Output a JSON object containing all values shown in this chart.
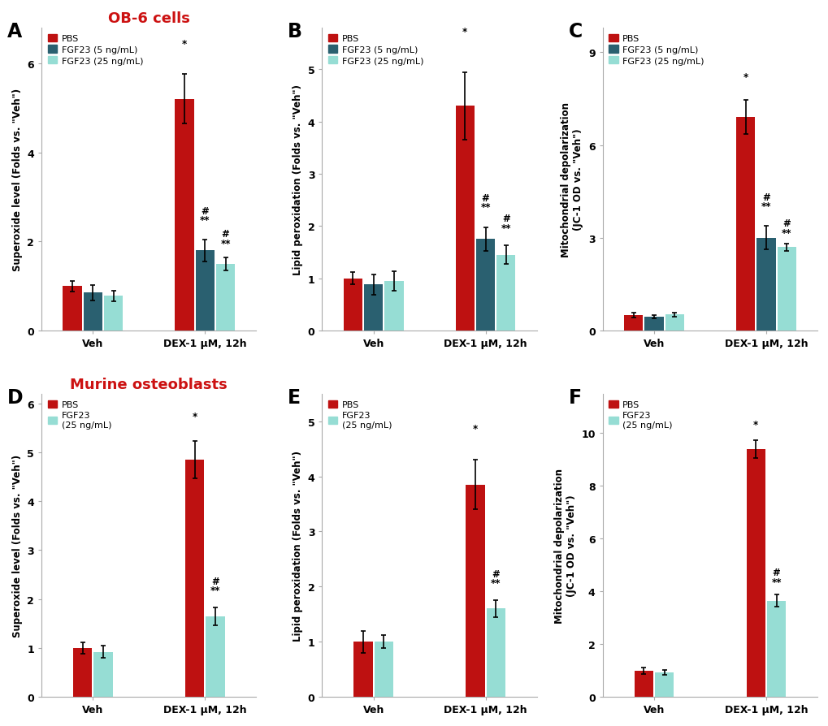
{
  "panels": [
    {
      "label": "A",
      "title": "OB-6 cells",
      "title_color": "#cc1111",
      "ylabel": "Superoxide level (Folds vs. \"Veh\")",
      "ylim": [
        0,
        6.8
      ],
      "yticks": [
        0,
        2,
        4,
        6
      ],
      "n_series": 3,
      "series_labels": [
        "PBS",
        "FGF23 (5 ng/mL)",
        "FGF23 (25 ng/mL)"
      ],
      "veh_values": [
        1.0,
        0.85,
        0.78
      ],
      "veh_errors": [
        0.12,
        0.18,
        0.12
      ],
      "dex_values": [
        5.2,
        1.8,
        1.5
      ],
      "dex_errors": [
        0.55,
        0.25,
        0.15
      ],
      "ann_dex": [
        "*",
        "#\n**",
        "#\n**"
      ],
      "ann_dex_offsets": [
        0.58,
        0.32,
        0.2
      ]
    },
    {
      "label": "B",
      "title": null,
      "ylabel": "Lipid peroxidation (Folds vs. \"Veh\")",
      "ylim": [
        0,
        5.8
      ],
      "yticks": [
        0,
        1,
        2,
        3,
        4,
        5
      ],
      "n_series": 3,
      "series_labels": [
        "PBS",
        "FGF23 (5 ng/mL)",
        "FGF23 (25 ng/mL)"
      ],
      "veh_values": [
        1.0,
        0.88,
        0.95
      ],
      "veh_errors": [
        0.12,
        0.2,
        0.18
      ],
      "dex_values": [
        4.3,
        1.75,
        1.45
      ],
      "dex_errors": [
        0.65,
        0.22,
        0.18
      ],
      "ann_dex": [
        "*",
        "#\n**",
        "#\n**"
      ],
      "ann_dex_offsets": [
        0.68,
        0.3,
        0.24
      ]
    },
    {
      "label": "C",
      "title": null,
      "ylabel": "Mitochondrial depolarization\n(JC-1 OD vs. \"Veh\")",
      "ylim": [
        0,
        9.8
      ],
      "yticks": [
        0,
        3,
        6,
        9
      ],
      "n_series": 3,
      "series_labels": [
        "PBS",
        "FGF23 (5 ng/mL)",
        "FGF23 (25 ng/mL)"
      ],
      "veh_values": [
        0.5,
        0.45,
        0.52
      ],
      "veh_errors": [
        0.07,
        0.05,
        0.06
      ],
      "dex_values": [
        6.9,
        3.0,
        2.7
      ],
      "dex_errors": [
        0.55,
        0.38,
        0.12
      ],
      "ann_dex": [
        "*",
        "#\n**",
        "#\n**"
      ],
      "ann_dex_offsets": [
        0.58,
        0.48,
        0.18
      ]
    },
    {
      "label": "D",
      "title": "Murine osteoblasts",
      "title_color": "#cc1111",
      "ylabel": "Superoxide level (Folds vs. \"Veh\")",
      "ylim": [
        0,
        6.2
      ],
      "yticks": [
        0,
        1,
        2,
        3,
        4,
        5,
        6
      ],
      "n_series": 2,
      "series_labels": [
        "PBS",
        "FGF23\n(25 ng/mL)"
      ],
      "veh_values": [
        1.0,
        0.92
      ],
      "veh_errors": [
        0.12,
        0.12
      ],
      "dex_values": [
        4.85,
        1.65
      ],
      "dex_errors": [
        0.38,
        0.18
      ],
      "ann_dex": [
        "*",
        "#\n**"
      ],
      "ann_dex_offsets": [
        0.4,
        0.24
      ]
    },
    {
      "label": "E",
      "title": null,
      "ylabel": "Lipid peroxidation (Folds vs. \"Veh\")",
      "ylim": [
        0,
        5.5
      ],
      "yticks": [
        0,
        1,
        2,
        3,
        4,
        5
      ],
      "n_series": 2,
      "series_labels": [
        "PBS",
        "FGF23\n(25 ng/mL)"
      ],
      "veh_values": [
        1.0,
        1.0
      ],
      "veh_errors": [
        0.2,
        0.12
      ],
      "dex_values": [
        3.85,
        1.6
      ],
      "dex_errors": [
        0.45,
        0.15
      ],
      "ann_dex": [
        "*",
        "#\n**"
      ],
      "ann_dex_offsets": [
        0.48,
        0.22
      ]
    },
    {
      "label": "F",
      "title": null,
      "ylabel": "Mitochondrial depolarization\n(JC-1 OD vs. \"Veh\")",
      "ylim": [
        0,
        11.5
      ],
      "yticks": [
        0,
        2,
        4,
        6,
        8,
        10
      ],
      "n_series": 2,
      "series_labels": [
        "PBS",
        "FGF23\n(25 ng/mL)"
      ],
      "veh_values": [
        1.0,
        0.92
      ],
      "veh_errors": [
        0.12,
        0.1
      ],
      "dex_values": [
        9.4,
        3.65
      ],
      "dex_errors": [
        0.35,
        0.22
      ],
      "ann_dex": [
        "*",
        "#\n**"
      ],
      "ann_dex_offsets": [
        0.38,
        0.3
      ]
    }
  ],
  "colors": {
    "PBS": "#be1111",
    "FGF23_5": "#2a6070",
    "FGF23_25": "#96ddd4"
  },
  "bar_width": 0.22,
  "group_centers": [
    1.0,
    2.2
  ],
  "xticklabels": [
    "Veh",
    "DEX-1 μM, 12h"
  ]
}
